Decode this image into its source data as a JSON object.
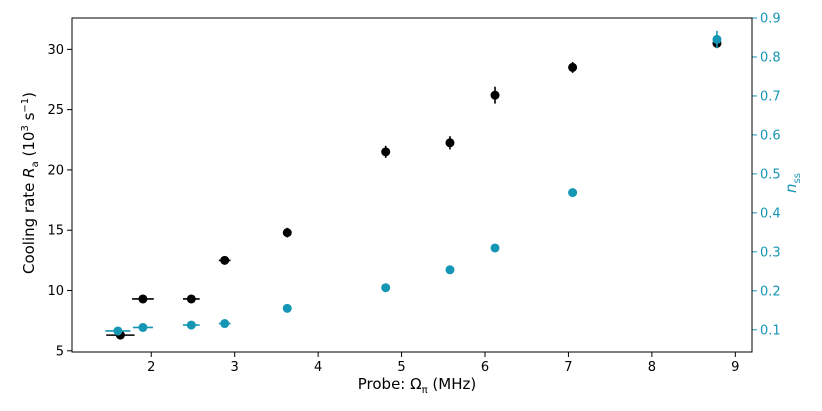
{
  "chart_data": {
    "type": "scatter",
    "xlabel": "Probe: Ω",
    "xlabel_sub": "π",
    "xlabel_unit": " (MHz)",
    "ylabel_left": {
      "pre": "Cooling rate ",
      "var": "R",
      "sub": "a",
      "unit_open": " (10",
      "unit_exp": "3",
      "unit_mid": " s",
      "unit_exp2": "−1",
      "unit_close": ")"
    },
    "ylabel_right": {
      "var": "n",
      "sub": "ss"
    },
    "x_range": [
      1.05,
      9.2
    ],
    "y_left_range": [
      4.9,
      32.6
    ],
    "y_right_range": [
      0.043,
      0.9
    ],
    "x_ticks": [
      2,
      3,
      4,
      5,
      6,
      7,
      8,
      9
    ],
    "y_left_ticks": [
      5,
      10,
      15,
      20,
      25,
      30
    ],
    "y_right_ticks": [
      0.1,
      0.2,
      0.3,
      0.4,
      0.5,
      0.6,
      0.7,
      0.8,
      0.9
    ],
    "grid": false,
    "colors": {
      "left": "#000000",
      "right": "#1696b5"
    },
    "series": [
      {
        "axis": "left",
        "points": [
          {
            "x": 1.63,
            "y": 6.3,
            "xerr": 0.17,
            "yerr": 0.2
          },
          {
            "x": 1.9,
            "y": 9.3,
            "xerr": 0.13,
            "yerr": 0.2
          },
          {
            "x": 2.48,
            "y": 9.3,
            "xerr": 0.1,
            "yerr": 0.2
          },
          {
            "x": 2.88,
            "y": 12.5,
            "xerr": 0.07,
            "yerr": 0.25
          },
          {
            "x": 3.63,
            "y": 14.8,
            "xerr": 0.05,
            "yerr": 0.4
          },
          {
            "x": 4.81,
            "y": 21.5,
            "xerr": 0.0,
            "yerr": 0.5
          },
          {
            "x": 5.58,
            "y": 22.25,
            "xerr": 0.0,
            "yerr": 0.55
          },
          {
            "x": 6.12,
            "y": 26.2,
            "xerr": 0.0,
            "yerr": 0.7
          },
          {
            "x": 7.05,
            "y": 28.5,
            "xerr": 0.0,
            "yerr": 0.45
          },
          {
            "x": 8.78,
            "y": 30.5,
            "xerr": 0.0,
            "yerr": 0.4
          }
        ]
      },
      {
        "axis": "right",
        "points": [
          {
            "x": 1.6,
            "y": 0.097,
            "xerr": 0.15,
            "yerr": 0.0
          },
          {
            "x": 1.9,
            "y": 0.106,
            "xerr": 0.12,
            "yerr": 0.0
          },
          {
            "x": 2.48,
            "y": 0.112,
            "xerr": 0.1,
            "yerr": 0.0
          },
          {
            "x": 2.88,
            "y": 0.116,
            "xerr": 0.07,
            "yerr": 0.0
          },
          {
            "x": 3.63,
            "y": 0.155,
            "xerr": 0.0,
            "yerr": 0.0
          },
          {
            "x": 4.81,
            "y": 0.208,
            "xerr": 0.0,
            "yerr": 0.0
          },
          {
            "x": 5.58,
            "y": 0.254,
            "xerr": 0.0,
            "yerr": 0.0
          },
          {
            "x": 6.12,
            "y": 0.31,
            "xerr": 0.0,
            "yerr": 0.0
          },
          {
            "x": 7.05,
            "y": 0.452,
            "xerr": 0.0,
            "yerr": 0.0
          },
          {
            "x": 8.78,
            "y": 0.845,
            "xerr": 0.0,
            "yerr": 0.022
          }
        ]
      }
    ]
  }
}
